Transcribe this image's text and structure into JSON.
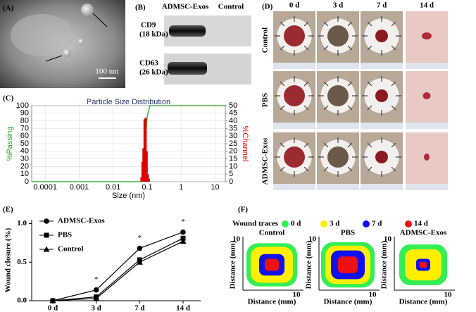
{
  "panel_labels": {
    "a": "(A)",
    "b": "(B)",
    "c": "(C)",
    "d": "(D)",
    "e": "(E)",
    "f": "(F)"
  },
  "panel_a": {
    "scale_bar": "100 nm"
  },
  "panel_b": {
    "columns": [
      "ADMSC-Exos",
      "Control"
    ],
    "rows": [
      [
        "CD9",
        "(18 kDa)"
      ],
      [
        "CD63",
        "(26 kDa)"
      ]
    ]
  },
  "panel_d": {
    "columns": [
      "0 d",
      "3 d",
      "7 d",
      "14 d"
    ],
    "rows": [
      "Control",
      "PBS",
      "ADMSC-Exos"
    ]
  },
  "panel_f": {
    "legend_title": "Wound traces",
    "legend": [
      {
        "label": "0 d",
        "color": "#33ee55"
      },
      {
        "label": "3 d",
        "color": "#ffee00"
      },
      {
        "label": "7 d",
        "color": "#1111ee"
      },
      {
        "label": "14 d",
        "color": "#ee1111"
      }
    ],
    "plots": [
      "Control",
      "PBS",
      "ADMSC-Exos"
    ],
    "axis_label": "Distance (mm)",
    "tick": 10
  },
  "chart_data": [
    {
      "type": "size-distribution",
      "title": "Particle Size Distribution",
      "xlabel": "Size (nm)",
      "ylabel": "%Passing",
      "y2label": "%Channel",
      "log_x": true,
      "grid": true,
      "xlim": [
        4e-05,
        20
      ],
      "xticks": [
        0.0001,
        0.001,
        0.01,
        0.1,
        1,
        10
      ],
      "ylim": [
        0,
        100
      ],
      "yticks": [
        0,
        10,
        20,
        30,
        40,
        50,
        60,
        70,
        80,
        90,
        100
      ],
      "y2lim": [
        0,
        50
      ],
      "y2ticks": [
        0,
        5,
        10,
        15,
        20,
        25,
        30,
        35,
        40,
        45,
        50
      ],
      "series": [
        {
          "type": "line",
          "color": "#22aa22",
          "x": [
            4e-05,
            0.065,
            0.07,
            0.08,
            0.09,
            0.1,
            0.12,
            20
          ],
          "values": [
            0,
            0,
            3,
            20,
            60,
            85,
            100,
            100
          ]
        },
        {
          "type": "bar",
          "axis": "y2",
          "color": "#dd0000",
          "x": [
            0.068,
            0.073,
            0.078,
            0.084,
            0.09,
            0.097,
            0.104,
            0.112
          ],
          "values": [
            3,
            13,
            22,
            41,
            42,
            20,
            5,
            2
          ]
        }
      ]
    },
    {
      "type": "line",
      "ylabel": "Wound closure (%)",
      "categories": [
        "0 d",
        "3 d",
        "7 d",
        "14 d"
      ],
      "ylim": [
        0,
        1.05
      ],
      "yticks": [
        {
          "value": 0,
          "label": "0.0"
        },
        {
          "value": 0.5,
          "label": "0.5"
        },
        {
          "value": 1,
          "label": "1.0"
        }
      ],
      "legend": "upper left",
      "annotations": [
        null,
        "*",
        "*",
        "*"
      ],
      "series": [
        {
          "name": "ADMSC-Exos",
          "color": "#000000",
          "marker": "circle",
          "values": [
            0,
            0.14,
            0.68,
            0.89
          ]
        },
        {
          "name": "PBS",
          "color": "#000000",
          "marker": "square",
          "values": [
            0,
            0.05,
            0.53,
            0.81
          ]
        },
        {
          "name": "Control",
          "color": "#000000",
          "marker": "triangle",
          "values": [
            0,
            0.03,
            0.5,
            0.77
          ]
        }
      ]
    }
  ]
}
